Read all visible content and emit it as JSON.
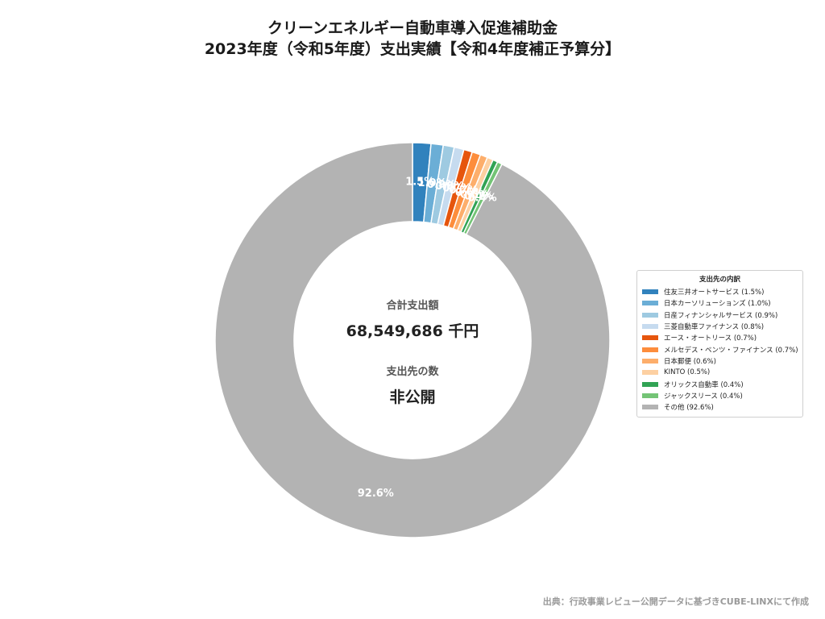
{
  "chart_data": {
    "type": "pie",
    "variant": "donut",
    "title": "クリーンエネルギー自動車導入促進補助金",
    "subtitle": "2023年度（令和5年度）支出実績【令和4年度補正予算分】",
    "center": {
      "total_label": "合計支出額",
      "total_value": "68,549,686 千円",
      "count_label": "支出先の数",
      "count_value": "非公開"
    },
    "legend_title": "支出先の内訳",
    "legend_placement": "right",
    "slices": [
      {
        "name": "住友三井オートサービス",
        "value": 1.5,
        "label": "1.5%",
        "legend": "住友三井オートサービス (1.5%)",
        "color": "#3182bd"
      },
      {
        "name": "日本カーソリューションズ",
        "value": 1.0,
        "label": "1.0%",
        "legend": "日本カーソリューションズ (1.0%)",
        "color": "#6baed6"
      },
      {
        "name": "日産フィナンシャルサービス",
        "value": 0.9,
        "label": "0.9%",
        "legend": "日産フィナンシャルサービス (0.9%)",
        "color": "#9ecae1"
      },
      {
        "name": "三菱自動車ファイナンス",
        "value": 0.8,
        "label": "0.8%",
        "legend": "三菱自動車ファイナンス (0.8%)",
        "color": "#c6dbef"
      },
      {
        "name": "エース・オートリース",
        "value": 0.7,
        "label": "0.7%",
        "legend": "エース・オートリース (0.7%)",
        "color": "#e6550d"
      },
      {
        "name": "メルセデス・ベンツ・ファイナンス",
        "value": 0.7,
        "label": "0.7%",
        "legend": "メルセデス・ベンツ・ファイナンス (0.7%)",
        "color": "#fd8d3c"
      },
      {
        "name": "日本郵便",
        "value": 0.6,
        "label": "0.6%",
        "legend": "日本郵便 (0.6%)",
        "color": "#fdae6b"
      },
      {
        "name": "KINTO",
        "value": 0.5,
        "label": "0.5%",
        "legend": "KINTO (0.5%)",
        "color": "#fdd0a2"
      },
      {
        "name": "オリックス自動車",
        "value": 0.4,
        "label": "0.4%",
        "legend": "オリックス自動車 (0.4%)",
        "color": "#31a354"
      },
      {
        "name": "ジャックスリース",
        "value": 0.4,
        "label": "0.4%",
        "legend": "ジャックスリース (0.4%)",
        "color": "#74c476"
      },
      {
        "name": "その他",
        "value": 92.6,
        "label": "92.6%",
        "legend": "その他 (92.6%)",
        "color": "#b3b3b3"
      }
    ]
  },
  "source": "出典：行政事業レビュー公開データに基づきCUBE-LINXにて作成"
}
